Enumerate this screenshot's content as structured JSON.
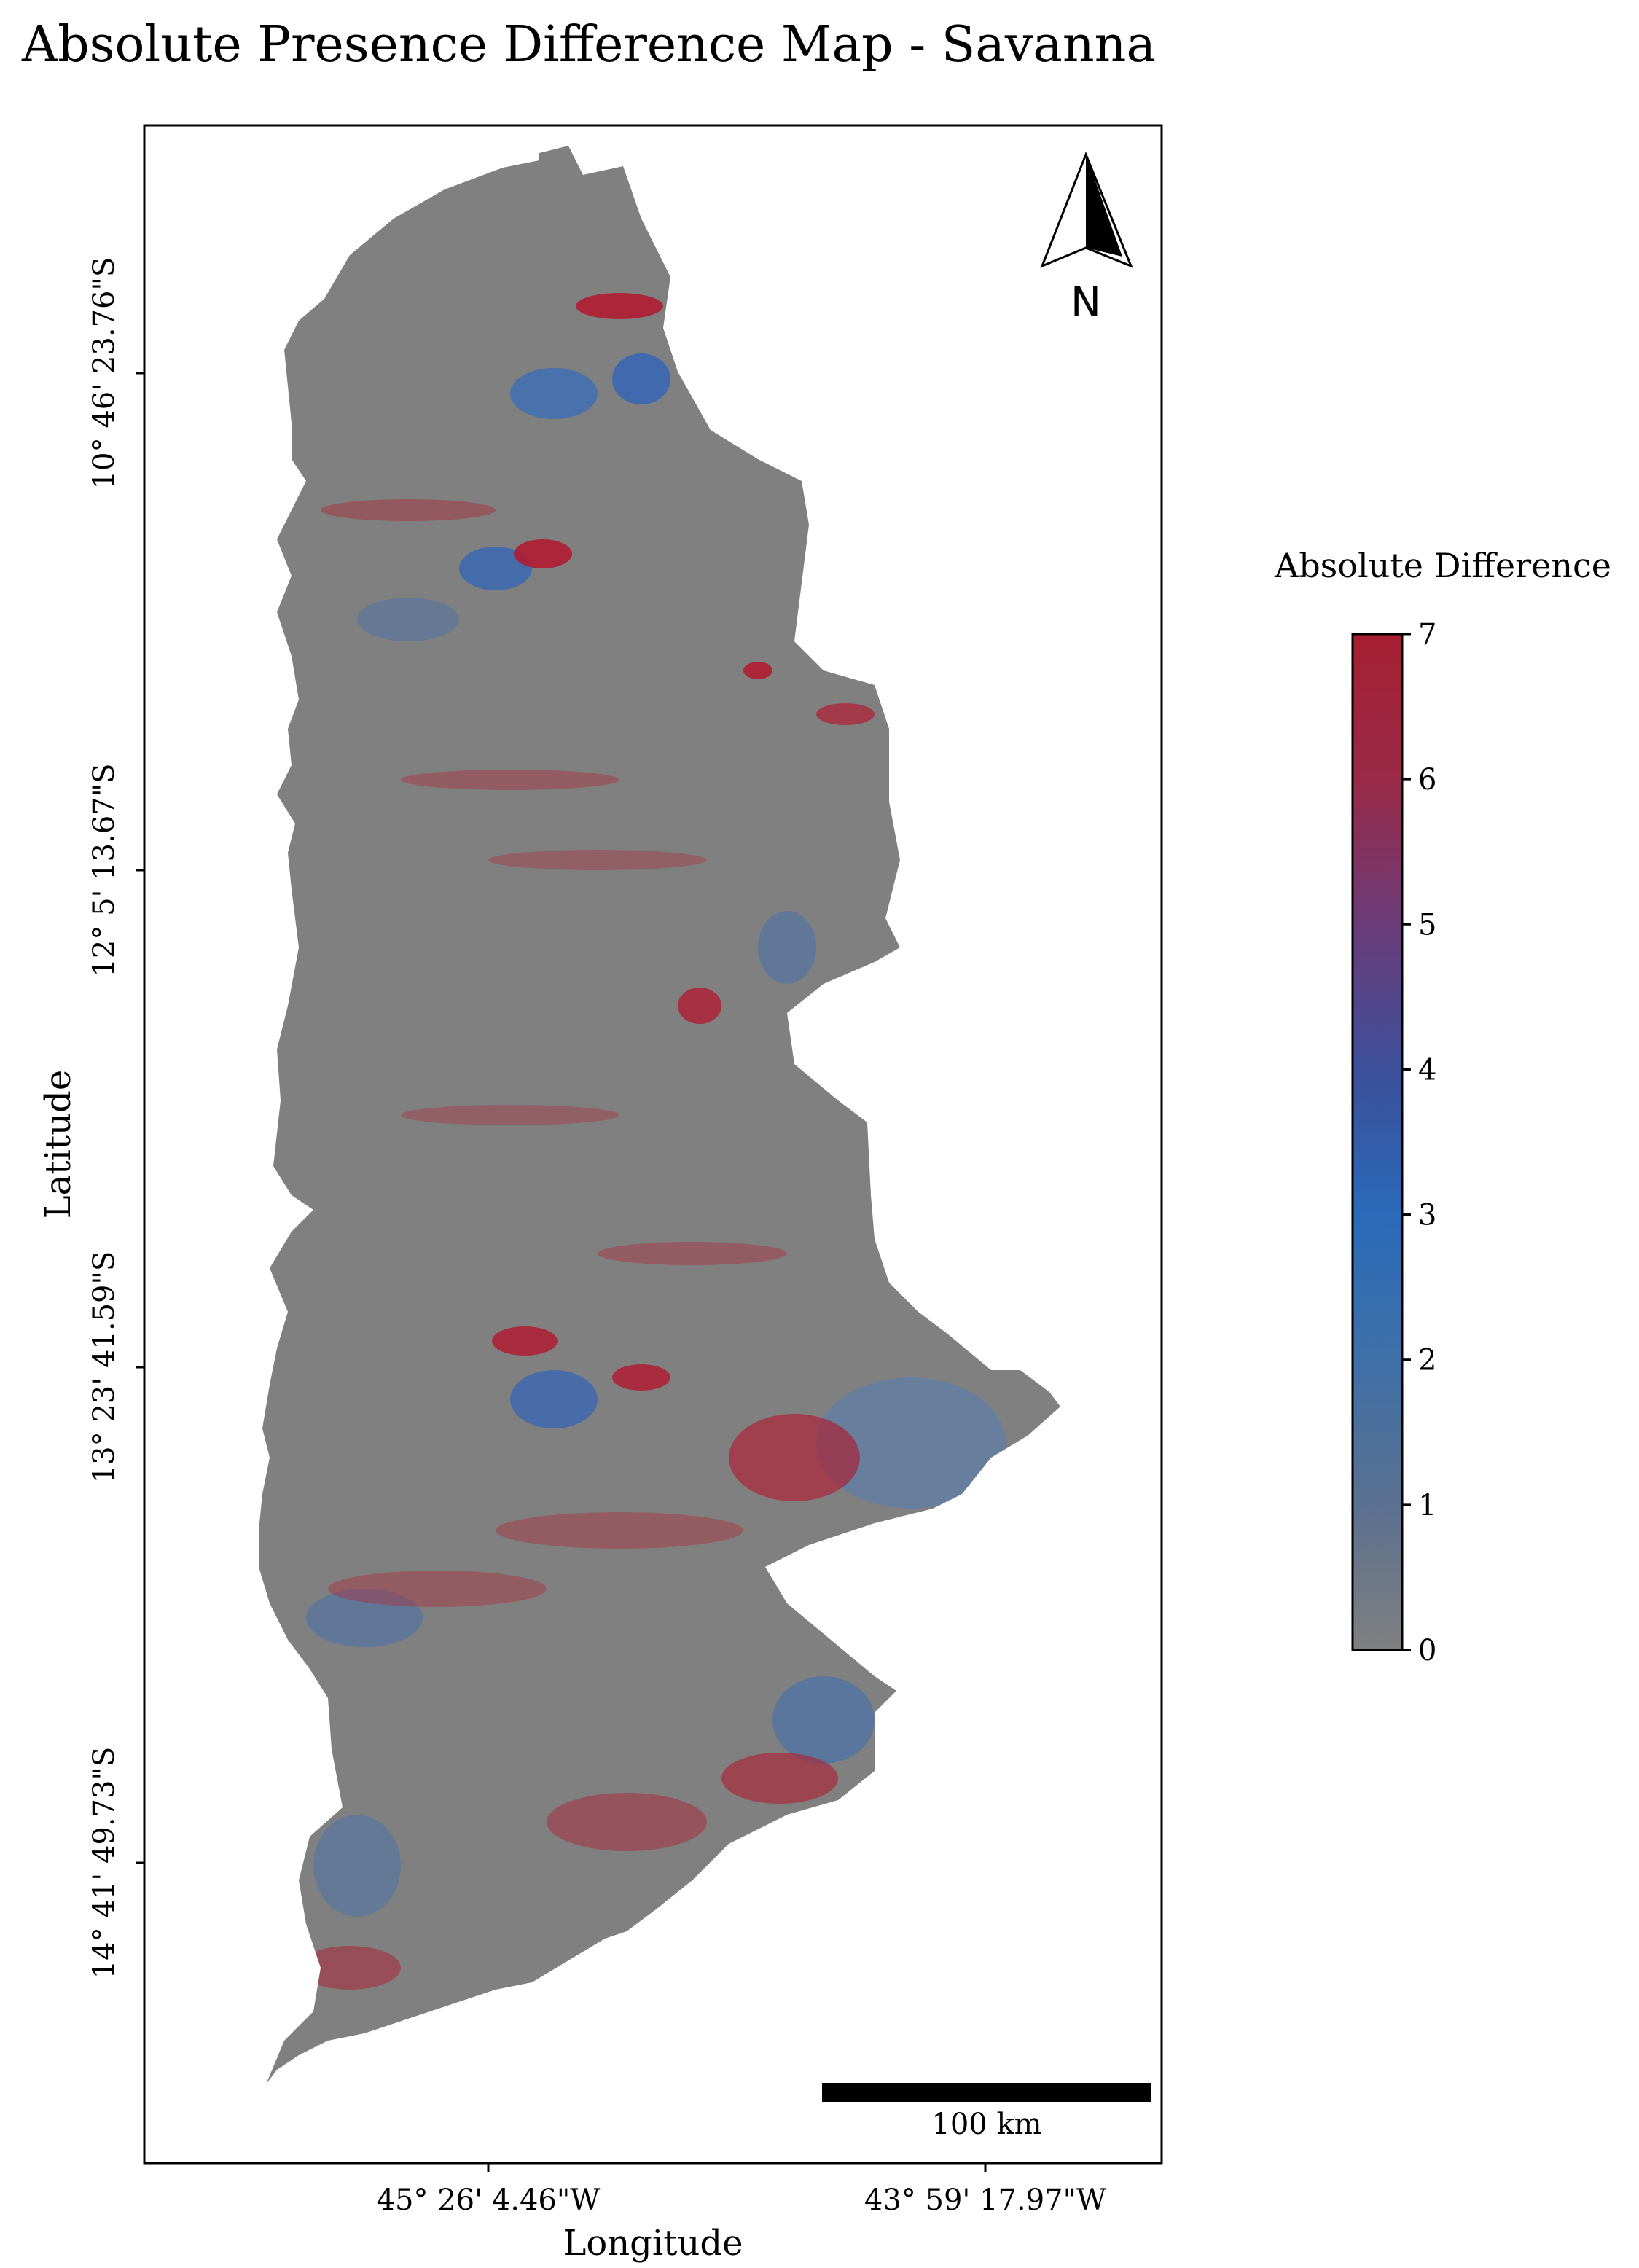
{
  "title": "Absolute Presence Difference Map - Savanna",
  "axes": {
    "xlabel": "Longitude",
    "ylabel": "Latitude",
    "x_ticks": [
      "45° 26' 4.46\"W",
      "43° 59' 17.97\"W"
    ],
    "y_ticks": [
      "10° 46' 23.76\"S",
      "12° 5' 13.67\"S",
      "13° 23' 41.59\"S",
      "14° 41' 49.73\"S"
    ]
  },
  "north_arrow": {
    "label": "N",
    "icon": "north-arrow-icon"
  },
  "scale_bar": {
    "label": "100 km",
    "distance_km": 100
  },
  "colorbar": {
    "title": "Absolute Difference",
    "min": 0,
    "max": 7,
    "ticks": [
      "0",
      "1",
      "2",
      "3",
      "4",
      "5",
      "6",
      "7"
    ],
    "colors": [
      "#808080",
      "#5a7090",
      "#3f70a8",
      "#2a6ab8",
      "#3c4f9a",
      "#6a3b78",
      "#9a2a48",
      "#a51f30"
    ]
  },
  "colors": {
    "no_difference": "#808080",
    "medium_difference": "#3a6fb0",
    "high_difference": "#b01c32"
  }
}
